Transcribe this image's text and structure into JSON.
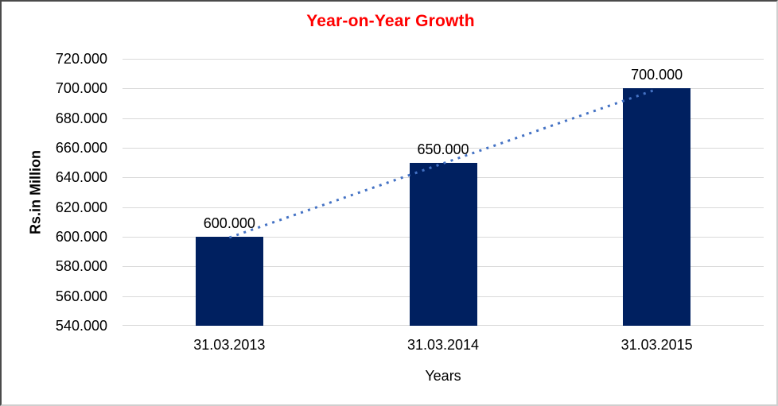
{
  "chart_data": {
    "type": "bar",
    "title": "Year-on-Year Growth",
    "title_color": "#ff0000",
    "xlabel": "Years",
    "ylabel": "Rs.in Million",
    "categories": [
      "31.03.2013",
      "31.03.2014",
      "31.03.2015"
    ],
    "values": [
      600000,
      650000,
      700000
    ],
    "data_labels": [
      "600.000",
      "650.000",
      "700.000"
    ],
    "ylim": [
      540000,
      720000
    ],
    "ytick_step": 20000,
    "ytick_labels": [
      "540.000",
      "560.000",
      "580.000",
      "600.000",
      "620.000",
      "640.000",
      "660.000",
      "680.000",
      "700.000",
      "720.000"
    ],
    "bar_color": "#002060",
    "gridline_color": "#d9d9d9",
    "text_color": "#000000",
    "legend": "none",
    "trendline": {
      "type": "linear",
      "style": "dotted",
      "color": "#4472c4",
      "connects": "bar tops from 600.000 to 700.000"
    }
  }
}
